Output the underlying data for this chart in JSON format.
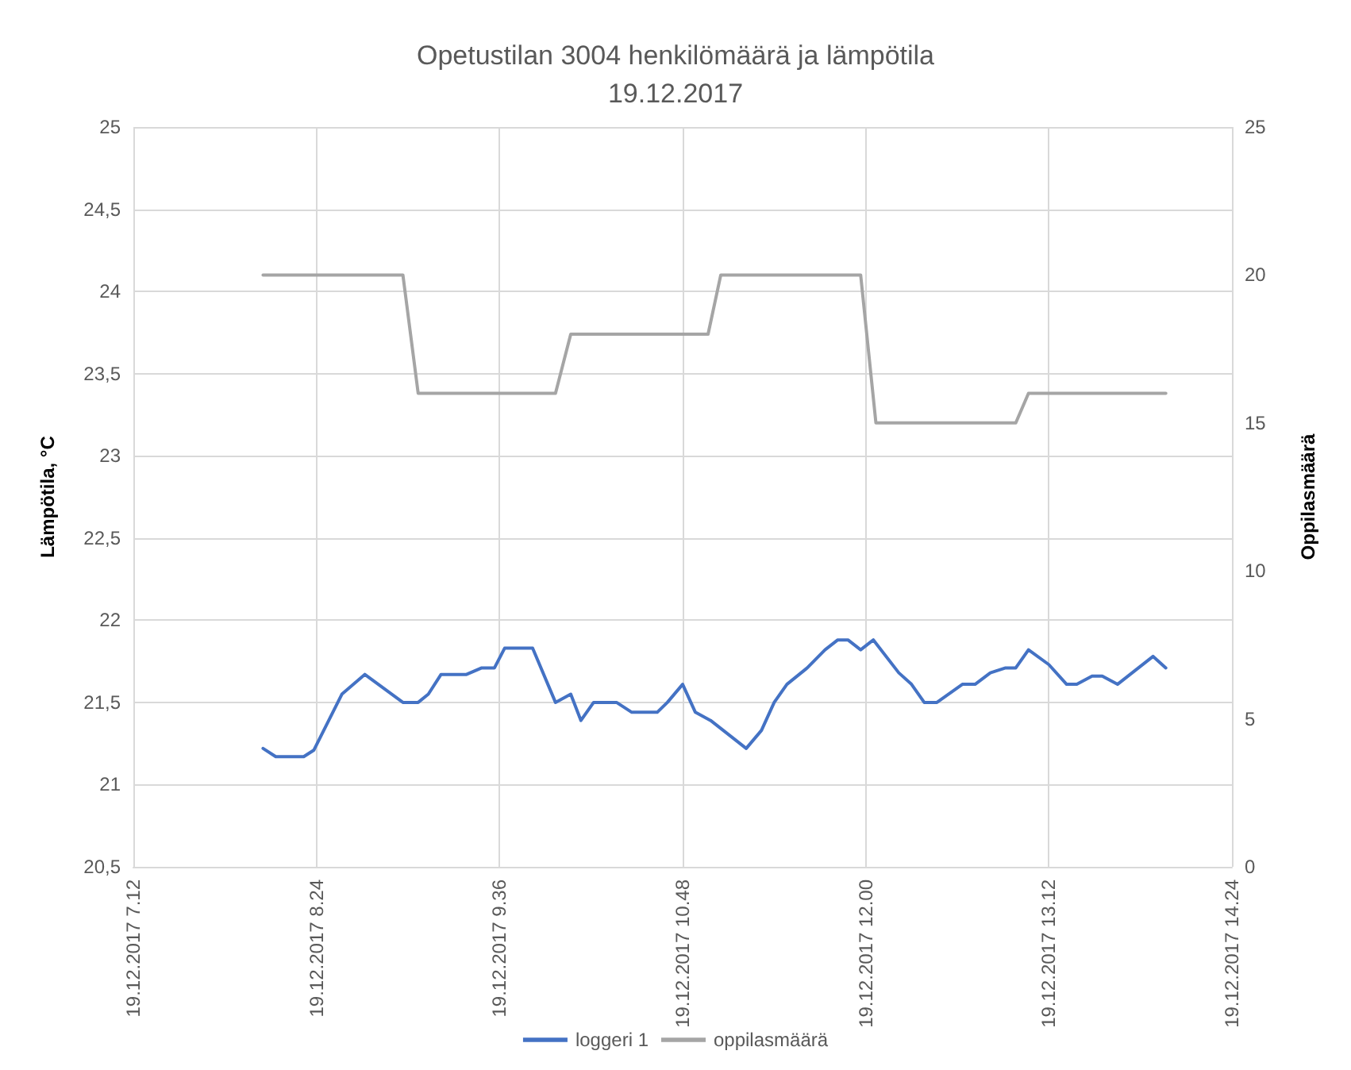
{
  "chart_data": {
    "type": "line",
    "title": "Opetustilan 3004 henkilömäärä ja lämpötila\n19.12.2017",
    "ylabel": "Lämpötila, °C",
    "y2label": "Oppilasmäärä",
    "xlim": [
      "2017-12-19T07:12",
      "2017-12-19T14:24"
    ],
    "xticks": [
      {
        "value": "2017-12-19T07:12",
        "label": "19.12.2017 7.12"
      },
      {
        "value": "2017-12-19T08:24",
        "label": "19.12.2017 8.24"
      },
      {
        "value": "2017-12-19T09:36",
        "label": "19.12.2017 9.36"
      },
      {
        "value": "2017-12-19T10:48",
        "label": "19.12.2017 10.48"
      },
      {
        "value": "2017-12-19T12:00",
        "label": "19.12.2017 12.00"
      },
      {
        "value": "2017-12-19T13:12",
        "label": "19.12.2017 13.12"
      },
      {
        "value": "2017-12-19T14:24",
        "label": "19.12.2017 14.24"
      }
    ],
    "ylim": [
      20.5,
      25
    ],
    "yticks": [
      {
        "value": 20.5,
        "label": "20,5"
      },
      21,
      {
        "value": 21.5,
        "label": "21,5"
      },
      22,
      {
        "value": 22.5,
        "label": "22,5"
      },
      23,
      {
        "value": 23.5,
        "label": "23,5"
      },
      24,
      {
        "value": 24.5,
        "label": "24,5"
      },
      25
    ],
    "y2lim": [
      0,
      25
    ],
    "y2ticks": [
      0,
      5,
      10,
      15,
      20,
      25
    ],
    "grid": true,
    "legend": "bottom",
    "marker": "none",
    "line_style": "solid",
    "series": [
      {
        "name": "loggeri 1",
        "color": "#4472c4",
        "x": [
          "2017-12-19T08:03",
          "2017-12-19T08:08",
          "2017-12-19T08:19",
          "2017-12-19T08:23",
          "2017-12-19T08:34",
          "2017-12-19T08:43",
          "2017-12-19T08:58",
          "2017-12-19T09:04",
          "2017-12-19T09:08",
          "2017-12-19T09:13",
          "2017-12-19T09:23",
          "2017-12-19T09:29",
          "2017-12-19T09:34",
          "2017-12-19T09:38",
          "2017-12-19T09:49",
          "2017-12-19T09:58",
          "2017-12-19T10:04",
          "2017-12-19T10:08",
          "2017-12-19T10:13",
          "2017-12-19T10:22",
          "2017-12-19T10:28",
          "2017-12-19T10:38",
          "2017-12-19T10:42",
          "2017-12-19T10:48",
          "2017-12-19T10:53",
          "2017-12-19T10:59",
          "2017-12-19T11:13",
          "2017-12-19T11:19",
          "2017-12-19T11:24",
          "2017-12-19T11:29",
          "2017-12-19T11:37",
          "2017-12-19T11:44",
          "2017-12-19T11:49",
          "2017-12-19T11:53",
          "2017-12-19T11:58",
          "2017-12-19T12:03",
          "2017-12-19T12:13",
          "2017-12-19T12:18",
          "2017-12-19T12:23",
          "2017-12-19T12:28",
          "2017-12-19T12:38",
          "2017-12-19T12:43",
          "2017-12-19T12:49",
          "2017-12-19T12:55",
          "2017-12-19T12:59",
          "2017-12-19T13:04",
          "2017-12-19T13:12",
          "2017-12-19T13:19",
          "2017-12-19T13:23",
          "2017-12-19T13:29",
          "2017-12-19T13:33",
          "2017-12-19T13:39",
          "2017-12-19T13:53",
          "2017-12-19T13:58"
        ],
        "values": [
          21.22,
          21.17,
          21.17,
          21.21,
          21.55,
          21.67,
          21.5,
          21.5,
          21.55,
          21.67,
          21.67,
          21.71,
          21.71,
          21.83,
          21.83,
          21.5,
          21.55,
          21.39,
          21.5,
          21.5,
          21.44,
          21.44,
          21.5,
          21.61,
          21.44,
          21.39,
          21.22,
          21.33,
          21.5,
          21.61,
          21.71,
          21.82,
          21.88,
          21.88,
          21.82,
          21.88,
          21.68,
          21.61,
          21.5,
          21.5,
          21.61,
          21.61,
          21.68,
          21.71,
          21.71,
          21.82,
          21.73,
          21.61,
          21.61,
          21.66,
          21.66,
          21.61,
          21.78,
          21.71
        ]
      },
      {
        "name": "oppilasmäärä",
        "color": "#a5a5a5",
        "axis": "y2",
        "x": [
          "2017-12-19T08:03",
          "2017-12-19T08:58",
          "2017-12-19T09:04",
          "2017-12-19T09:58",
          "2017-12-19T10:04",
          "2017-12-19T10:58",
          "2017-12-19T11:03",
          "2017-12-19T11:58",
          "2017-12-19T12:04",
          "2017-12-19T12:59",
          "2017-12-19T13:04",
          "2017-12-19T13:58"
        ],
        "values": [
          20,
          20,
          16,
          16,
          18,
          18,
          20,
          20,
          15,
          15,
          16,
          16
        ]
      }
    ]
  }
}
